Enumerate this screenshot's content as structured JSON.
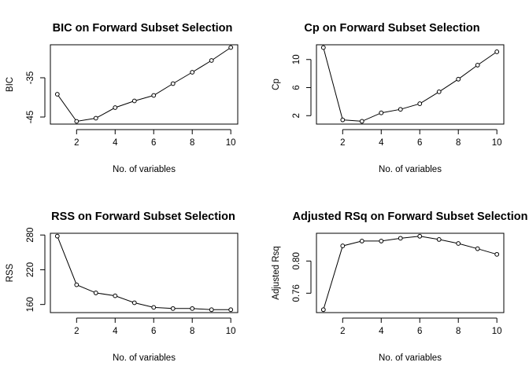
{
  "chart_data": [
    {
      "type": "line",
      "title": "BIC on Forward Subset Selection",
      "xlabel": "No. of variables",
      "ylabel": "BIC",
      "x": [
        1,
        2,
        3,
        4,
        5,
        6,
        7,
        8,
        9,
        10
      ],
      "values": [
        -39.2,
        -46.1,
        -45.3,
        -42.6,
        -40.9,
        -39.5,
        -36.5,
        -33.6,
        -30.6,
        -27.3
      ],
      "xlim": [
        0.64,
        10.36
      ],
      "ylim": [
        -46.8,
        -26.6
      ],
      "xticks": [
        2,
        4,
        6,
        8,
        10
      ],
      "yticks": [
        -45,
        -35
      ],
      "grid": false
    },
    {
      "type": "line",
      "title": "Cp on Forward Subset Selection",
      "xlabel": "No. of variables",
      "ylabel": "Cp",
      "x": [
        1,
        2,
        3,
        4,
        5,
        6,
        7,
        8,
        9,
        10
      ],
      "values": [
        11.7,
        1.4,
        1.2,
        2.4,
        2.9,
        3.7,
        5.4,
        7.2,
        9.2,
        11.1
      ],
      "xlim": [
        0.64,
        10.36
      ],
      "ylim": [
        0.8,
        12.1
      ],
      "xticks": [
        2,
        4,
        6,
        8,
        10
      ],
      "yticks": [
        2,
        6,
        10
      ],
      "grid": false
    },
    {
      "type": "line",
      "title": "RSS on Forward Subset Selection",
      "xlabel": "No. of variables",
      "ylabel": "RSS",
      "x": [
        1,
        2,
        3,
        4,
        5,
        6,
        7,
        8,
        9,
        10
      ],
      "values": [
        278,
        194,
        180,
        175,
        163,
        155,
        153,
        153,
        151,
        151
      ],
      "xlim": [
        0.64,
        10.36
      ],
      "ylim": [
        146,
        283
      ],
      "xticks": [
        2,
        4,
        6,
        8,
        10
      ],
      "yticks": [
        160,
        220,
        280
      ],
      "grid": false
    },
    {
      "type": "line",
      "title": "Adjusted RSq on Forward Subset Selection",
      "xlabel": "No. of variables",
      "ylabel": "Adjusted Rsq",
      "x": [
        1,
        2,
        3,
        4,
        5,
        6,
        7,
        8,
        9,
        10
      ],
      "values": [
        0.7395,
        0.8188,
        0.8248,
        0.8248,
        0.8283,
        0.8308,
        0.8268,
        0.8218,
        0.8153,
        0.8083
      ],
      "xlim": [
        0.64,
        10.36
      ],
      "ylim": [
        0.7359,
        0.8345
      ],
      "xticks": [
        2,
        4,
        6,
        8,
        10
      ],
      "yticks": [
        0.76,
        0.8
      ],
      "ytick_labels": [
        "0.76",
        "0.80"
      ],
      "grid": false
    }
  ]
}
